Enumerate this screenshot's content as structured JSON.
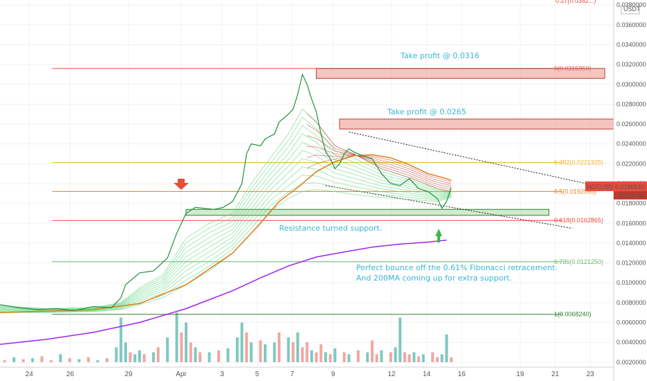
{
  "chart_data": {
    "type": "line",
    "currency": "USDT",
    "y_ticks": [
      "0.0380000",
      "0.0360000",
      "0.0340000",
      "0.0320000",
      "0.0300000",
      "0.0280000",
      "0.0260000",
      "0.0240000",
      "0.0220000",
      "0.0200000",
      "0.0180000",
      "0.0160000",
      "0.0140000",
      "0.0120000",
      "0.0100000",
      "0.0080000",
      "0.0060000",
      "0.0040000",
      "0.0020000"
    ],
    "x_ticks": [
      "24",
      "26",
      "29",
      "Apr",
      "3",
      "5",
      "7",
      "9",
      "12",
      "14",
      "16",
      "19",
      "21",
      "23"
    ],
    "ylim": [
      0.0015,
      0.0385
    ],
    "fib_levels": [
      {
        "label": "0(0.0315950)",
        "value": 0.031595,
        "color": "#e74c3c"
      },
      {
        "label": "0.382(0.0221325)",
        "value": 0.0221325,
        "color": "#f0b429"
      },
      {
        "label": "0.5(0.0192095)",
        "value": 0.0192095,
        "color": "#e67e22"
      },
      {
        "label": "0.618(0.0162865)",
        "value": 0.0162865,
        "color": "#e74c3c"
      },
      {
        "label": "0.786(0.0121250)",
        "value": 0.012125,
        "color": "#66bb6a"
      },
      {
        "label": "1(0.0068240)",
        "value": 0.006824,
        "color": "#2e7d32"
      }
    ],
    "top_partial_label": "0.27(0.0382...)",
    "price_tag": {
      "symbol": "HOTUSDT",
      "price": "0.0196540",
      "countdown": "03:21:40",
      "value": 0.019654
    },
    "annotations": [
      "Take profit @ 0.0316",
      "Take profit @ 0.0265",
      "Resistance turned support.",
      "Perfect bounce off the 0.61% Fibonacci retracement.",
      "And 200MA coming up for extra support."
    ],
    "price_series": [
      [
        0,
        0.0078
      ],
      [
        4,
        0.0075
      ],
      [
        8,
        0.0073
      ],
      [
        12,
        0.0074
      ],
      [
        16,
        0.0072
      ],
      [
        20,
        0.0076
      ],
      [
        24,
        0.0075
      ],
      [
        26,
        0.0085
      ],
      [
        27,
        0.0098
      ],
      [
        28,
        0.0102
      ],
      [
        30,
        0.011
      ],
      [
        33,
        0.0112
      ],
      [
        36,
        0.0125
      ],
      [
        38,
        0.015
      ],
      [
        40,
        0.017
      ],
      [
        42,
        0.0176
      ],
      [
        44,
        0.0175
      ],
      [
        46,
        0.0174
      ],
      [
        48,
        0.0176
      ],
      [
        50,
        0.0182
      ],
      [
        52,
        0.02
      ],
      [
        53,
        0.023
      ],
      [
        54,
        0.024
      ],
      [
        56,
        0.0238
      ],
      [
        57,
        0.0245
      ],
      [
        59,
        0.025
      ],
      [
        60,
        0.0262
      ],
      [
        62,
        0.027
      ],
      [
        63,
        0.0275
      ],
      [
        64,
        0.029
      ],
      [
        65,
        0.031
      ],
      [
        66,
        0.03
      ],
      [
        67,
        0.0285
      ],
      [
        68,
        0.0272
      ],
      [
        69,
        0.025
      ],
      [
        70,
        0.0232
      ],
      [
        71,
        0.0225
      ],
      [
        72,
        0.0215
      ],
      [
        73,
        0.022
      ],
      [
        74,
        0.023
      ],
      [
        75,
        0.0235
      ],
      [
        76,
        0.0232
      ],
      [
        78,
        0.0228
      ],
      [
        80,
        0.0225
      ],
      [
        82,
        0.021
      ],
      [
        84,
        0.02
      ],
      [
        86,
        0.0198
      ],
      [
        88,
        0.0205
      ],
      [
        90,
        0.0195
      ],
      [
        92,
        0.0192
      ],
      [
        94,
        0.0185
      ],
      [
        95,
        0.0175
      ],
      [
        96,
        0.0182
      ],
      [
        97,
        0.0196
      ]
    ],
    "ema_fast_series": [
      [
        0,
        0.0077
      ],
      [
        10,
        0.0074
      ],
      [
        20,
        0.0075
      ],
      [
        26,
        0.008
      ],
      [
        30,
        0.0095
      ],
      [
        35,
        0.0108
      ],
      [
        40,
        0.0145
      ],
      [
        45,
        0.016
      ],
      [
        50,
        0.017
      ],
      [
        54,
        0.02
      ],
      [
        58,
        0.0225
      ],
      [
        62,
        0.025
      ],
      [
        65,
        0.0275
      ],
      [
        68,
        0.0262
      ],
      [
        72,
        0.0238
      ],
      [
        76,
        0.023
      ],
      [
        82,
        0.0215
      ],
      [
        88,
        0.0206
      ],
      [
        94,
        0.0195
      ],
      [
        97,
        0.0192
      ]
    ],
    "ema_slow_series": [
      [
        0,
        0.007
      ],
      [
        10,
        0.007
      ],
      [
        20,
        0.0071
      ],
      [
        26,
        0.0073
      ],
      [
        30,
        0.0078
      ],
      [
        35,
        0.0085
      ],
      [
        40,
        0.0098
      ],
      [
        45,
        0.0112
      ],
      [
        50,
        0.013
      ],
      [
        54,
        0.015
      ],
      [
        58,
        0.0172
      ],
      [
        62,
        0.0185
      ],
      [
        65,
        0.0192
      ],
      [
        68,
        0.0194
      ],
      [
        72,
        0.0192
      ],
      [
        76,
        0.0189
      ],
      [
        82,
        0.0186
      ],
      [
        88,
        0.0184
      ],
      [
        94,
        0.0182
      ],
      [
        97,
        0.0186
      ]
    ],
    "ma100_series": [
      [
        0,
        0.007
      ],
      [
        20,
        0.0073
      ],
      [
        30,
        0.0079
      ],
      [
        40,
        0.0098
      ],
      [
        50,
        0.013
      ],
      [
        56,
        0.016
      ],
      [
        60,
        0.0182
      ],
      [
        64,
        0.0196
      ],
      [
        68,
        0.0212
      ],
      [
        72,
        0.0222
      ],
      [
        76,
        0.0228
      ],
      [
        80,
        0.0229
      ],
      [
        84,
        0.0226
      ],
      [
        88,
        0.0219
      ],
      [
        92,
        0.021
      ],
      [
        96,
        0.0205
      ],
      [
        97,
        0.0203
      ]
    ],
    "ma200_series": [
      [
        0,
        0.0038
      ],
      [
        10,
        0.0043
      ],
      [
        20,
        0.005
      ],
      [
        30,
        0.006
      ],
      [
        40,
        0.0074
      ],
      [
        50,
        0.0092
      ],
      [
        56,
        0.0105
      ],
      [
        62,
        0.0117
      ],
      [
        68,
        0.0126
      ],
      [
        74,
        0.0131
      ],
      [
        80,
        0.0136
      ],
      [
        86,
        0.0139
      ],
      [
        92,
        0.0141
      ],
      [
        96,
        0.0143
      ]
    ],
    "volume_bars": [
      [
        1,
        0.0022,
        "r"
      ],
      [
        3,
        0.0025,
        "g"
      ],
      [
        5,
        0.0023,
        "r"
      ],
      [
        7,
        0.0024,
        "g"
      ],
      [
        9,
        0.0026,
        "r"
      ],
      [
        11,
        0.0022,
        "r"
      ],
      [
        13,
        0.0028,
        "g"
      ],
      [
        15,
        0.0024,
        "r"
      ],
      [
        17,
        0.0023,
        "g"
      ],
      [
        19,
        0.0025,
        "r"
      ],
      [
        21,
        0.0022,
        "g"
      ],
      [
        23,
        0.0024,
        "r"
      ],
      [
        25,
        0.0035,
        "g"
      ],
      [
        26,
        0.0065,
        "g"
      ],
      [
        27,
        0.004,
        "g"
      ],
      [
        28,
        0.003,
        "r"
      ],
      [
        29,
        0.0028,
        "g"
      ],
      [
        30,
        0.0032,
        "g"
      ],
      [
        31,
        0.0028,
        "r"
      ],
      [
        33,
        0.003,
        "g"
      ],
      [
        34,
        0.0035,
        "r"
      ],
      [
        36,
        0.0045,
        "g"
      ],
      [
        38,
        0.007,
        "g"
      ],
      [
        39,
        0.005,
        "r"
      ],
      [
        40,
        0.006,
        "g"
      ],
      [
        41,
        0.004,
        "r"
      ],
      [
        42,
        0.0035,
        "g"
      ],
      [
        43,
        0.003,
        "r"
      ],
      [
        45,
        0.003,
        "g"
      ],
      [
        47,
        0.0032,
        "r"
      ],
      [
        49,
        0.0034,
        "g"
      ],
      [
        51,
        0.0045,
        "g"
      ],
      [
        52,
        0.006,
        "g"
      ],
      [
        53,
        0.005,
        "r"
      ],
      [
        54,
        0.004,
        "g"
      ],
      [
        56,
        0.0042,
        "r"
      ],
      [
        57,
        0.0038,
        "g"
      ],
      [
        59,
        0.004,
        "g"
      ],
      [
        60,
        0.005,
        "r"
      ],
      [
        62,
        0.0045,
        "g"
      ],
      [
        63,
        0.004,
        "r"
      ],
      [
        64,
        0.005,
        "g"
      ],
      [
        65,
        0.0035,
        "r"
      ],
      [
        66,
        0.004,
        "r"
      ],
      [
        67,
        0.0032,
        "g"
      ],
      [
        68,
        0.003,
        "r"
      ],
      [
        69,
        0.0038,
        "r"
      ],
      [
        70,
        0.003,
        "g"
      ],
      [
        71,
        0.0028,
        "r"
      ],
      [
        72,
        0.0034,
        "g"
      ],
      [
        74,
        0.003,
        "r"
      ],
      [
        75,
        0.0028,
        "g"
      ],
      [
        77,
        0.0032,
        "r"
      ],
      [
        79,
        0.003,
        "g"
      ],
      [
        80,
        0.0042,
        "r"
      ],
      [
        81,
        0.0028,
        "r"
      ],
      [
        82,
        0.0032,
        "g"
      ],
      [
        84,
        0.003,
        "r"
      ],
      [
        85,
        0.0035,
        "g"
      ],
      [
        86,
        0.0065,
        "g"
      ],
      [
        87,
        0.003,
        "r"
      ],
      [
        88,
        0.0028,
        "r"
      ],
      [
        89,
        0.003,
        "g"
      ],
      [
        90,
        0.0026,
        "r"
      ],
      [
        91,
        0.0028,
        "g"
      ],
      [
        93,
        0.003,
        "r"
      ],
      [
        94,
        0.0025,
        "r"
      ],
      [
        95,
        0.0028,
        "g"
      ],
      [
        96,
        0.0048,
        "g"
      ],
      [
        97,
        0.0025,
        "r"
      ]
    ],
    "zones": [
      {
        "name": "take-profit-zone-1",
        "x0": 68,
        "x1": 130,
        "y0": 0.0306,
        "y1": 0.0316,
        "kind": "profit"
      },
      {
        "name": "take-profit-zone-2",
        "x0": 73,
        "x1": 135,
        "y0": 0.0255,
        "y1": 0.0265,
        "kind": "profit"
      },
      {
        "name": "support-zone",
        "x0": 40,
        "x1": 118,
        "y0": 0.0168,
        "y1": 0.0174,
        "kind": "support"
      }
    ],
    "channel_lines": [
      {
        "name": "channel-upper-line",
        "x0": 75,
        "y0": 0.0252,
        "x1": 126,
        "y1": 0.02
      },
      {
        "name": "channel-lower-line",
        "x0": 70,
        "y0": 0.0198,
        "x1": 123,
        "y1": 0.0155
      }
    ]
  }
}
